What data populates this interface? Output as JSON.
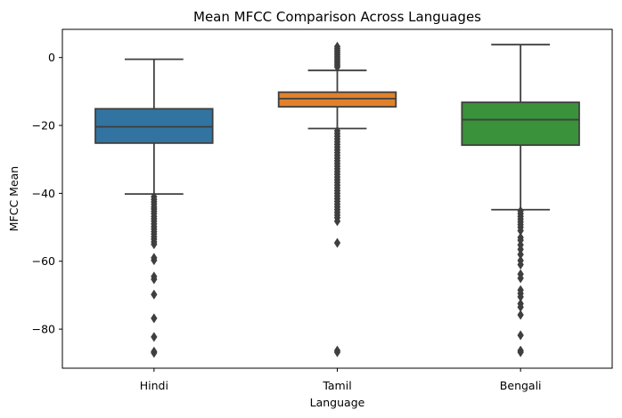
{
  "chart_data": {
    "type": "box",
    "title": "Mean MFCC Comparison Across Languages",
    "xlabel": "Language",
    "ylabel": "MFCC Mean",
    "ylim": [
      -91.5,
      8.3
    ],
    "yticks": [
      0,
      -20,
      -40,
      -60,
      -80
    ],
    "yticks_label": [
      "0",
      "−20",
      "−40",
      "−60",
      "−80"
    ],
    "grid": false,
    "categories": [
      "Hindi",
      "Tamil",
      "Bengali"
    ],
    "colors": [
      "#3274a1",
      "#e1812c",
      "#3a923a"
    ],
    "edge_color": "#3f3f3f",
    "boxes": [
      {
        "name": "Hindi",
        "whisker_low": -40.2,
        "q1": -25.2,
        "median": -20.4,
        "q3": -15.1,
        "whisker_high": -0.5,
        "outliers": [
          -41,
          -41.8,
          -42.5,
          -43.2,
          -44,
          -44.6,
          -45.3,
          -46,
          -46.8,
          -47.5,
          -48.2,
          -49,
          -49.8,
          -50.5,
          -51.3,
          -52,
          -52.8,
          -53.5,
          -54.3,
          -55,
          -59,
          -59.7,
          -64.5,
          -65.3,
          -69.8,
          -76.8,
          -82.3,
          -86.6,
          -87
        ]
      },
      {
        "name": "Tamil",
        "whisker_low": -20.9,
        "q1": -14.5,
        "median": -12.1,
        "q3": -10.2,
        "whisker_high": -3.8,
        "outliers": [
          3.2,
          2.6,
          2,
          1.4,
          0.8,
          0.2,
          -0.4,
          -1,
          -1.6,
          -2.2,
          -2.8,
          -21.6,
          -22.4,
          -23.2,
          -24,
          -24.8,
          -25.6,
          -26.4,
          -27.2,
          -28,
          -28.8,
          -29.6,
          -30.4,
          -31.2,
          -32,
          -32.8,
          -33.6,
          -34.4,
          -35.2,
          -36,
          -36.8,
          -37.6,
          -38.4,
          -39.2,
          -40,
          -40.8,
          -41.6,
          -42.4,
          -43.2,
          -44,
          -44.8,
          -45.6,
          -46.4,
          -47.2,
          -48.2,
          -54.6,
          -86.3,
          -86.8
        ]
      },
      {
        "name": "Bengali",
        "whisker_low": -44.8,
        "q1": -25.8,
        "median": -18.3,
        "q3": -13.2,
        "whisker_high": 3.8,
        "outliers": [
          -45.2,
          -46,
          -46.8,
          -47.6,
          -48.4,
          -49.2,
          -50,
          -51,
          -53,
          -53.8,
          -55.2,
          -56.5,
          -58,
          -59.8,
          -61,
          -63.8,
          -65,
          -68.5,
          -69.5,
          -70.5,
          -72.5,
          -73.5,
          -75.8,
          -81.8,
          -86.3,
          -86.8
        ]
      }
    ]
  }
}
